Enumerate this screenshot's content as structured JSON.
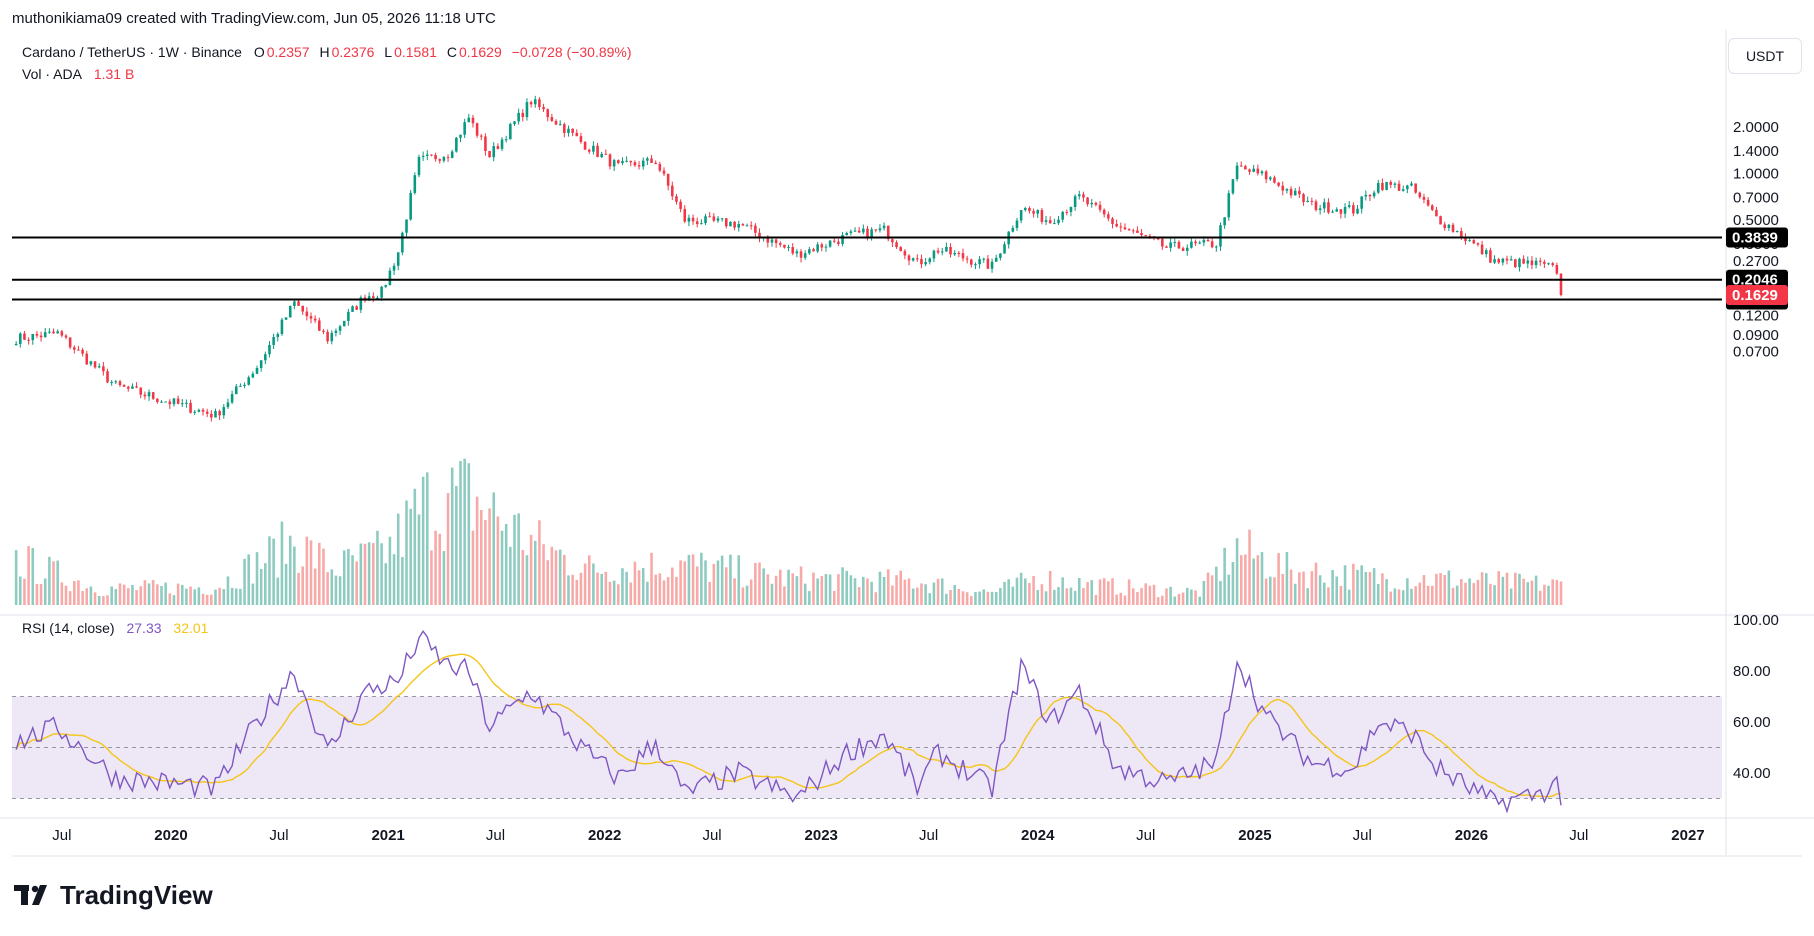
{
  "header": {
    "attribution": "muthonikiama09 created with TradingView.com, Jun 05, 2026 11:18 UTC"
  },
  "legend": {
    "symbol": "Cardano / TetherUS · 1W · Binance",
    "open_label": "O",
    "open": "0.2357",
    "high_label": "H",
    "high": "0.2376",
    "low_label": "L",
    "low": "0.1581",
    "close_label": "C",
    "close": "0.1629",
    "change": "−0.0728 (−30.89%)",
    "volume_label": "Vol · ADA",
    "volume": "1.31 B"
  },
  "rsi_legend": {
    "label": "RSI (14, close)",
    "value": "27.33",
    "ma_value": "32.01"
  },
  "currency_button": "USDT",
  "brand": "TradingView",
  "colors": {
    "up": "#089981",
    "down": "#f23645",
    "up_volume": "#8dcbc0",
    "down_volume": "#f7a9a7",
    "rsi_line": "#7e57c2",
    "rsi_ma": "#f5c518",
    "rsi_band": "#ede7f6",
    "price_badge": "#f23645",
    "level_line": "#000000"
  },
  "chart_data": [
    {
      "type": "candlestick",
      "title": "Cardano / TetherUS · 1W · Binance",
      "scale": "log",
      "y_axis_ticks": [
        "2.0000",
        "1.4000",
        "1.0000",
        "0.7000",
        "0.5000",
        "0.3500",
        "0.2700",
        "0.1200",
        "0.0900",
        "0.0700"
      ],
      "x_axis_ticks": [
        "Jul",
        "2020",
        "Jul",
        "2021",
        "Jul",
        "2022",
        "Jul",
        "2023",
        "Jul",
        "2024",
        "Jul",
        "2025",
        "Jul",
        "2026",
        "Jul",
        "2027"
      ],
      "horizontal_levels": [
        {
          "value": 0.3839,
          "label": "0.3839"
        },
        {
          "value": 0.2046,
          "label": "0.2046"
        },
        {
          "value": 0.1522,
          "label": "0.1522"
        }
      ],
      "last_price": {
        "value": 0.1629,
        "label": "0.1629"
      },
      "anchors": [
        {
          "date": "2019-04-15",
          "value": 0.085
        },
        {
          "date": "2019-06-24",
          "value": 0.092
        },
        {
          "date": "2019-09-30",
          "value": 0.042
        },
        {
          "date": "2019-12-30",
          "value": 0.033
        },
        {
          "date": "2020-03-16",
          "value": 0.027
        },
        {
          "date": "2020-05-25",
          "value": 0.056
        },
        {
          "date": "2020-07-27",
          "value": 0.145
        },
        {
          "date": "2020-09-21",
          "value": 0.085
        },
        {
          "date": "2020-11-23",
          "value": 0.16
        },
        {
          "date": "2020-12-21",
          "value": 0.17
        },
        {
          "date": "2021-01-18",
          "value": 0.31
        },
        {
          "date": "2021-02-22",
          "value": 1.2
        },
        {
          "date": "2021-04-12",
          "value": 1.35
        },
        {
          "date": "2021-05-17",
          "value": 2.3
        },
        {
          "date": "2021-06-21",
          "value": 1.3
        },
        {
          "date": "2021-08-30",
          "value": 2.95
        },
        {
          "date": "2021-11-22",
          "value": 1.6
        },
        {
          "date": "2022-01-24",
          "value": 1.1
        },
        {
          "date": "2022-03-28",
          "value": 1.2
        },
        {
          "date": "2022-05-16",
          "value": 0.5
        },
        {
          "date": "2022-08-15",
          "value": 0.47
        },
        {
          "date": "2022-11-21",
          "value": 0.3
        },
        {
          "date": "2023-02-13",
          "value": 0.39
        },
        {
          "date": "2023-04-17",
          "value": 0.43
        },
        {
          "date": "2023-06-12",
          "value": 0.26
        },
        {
          "date": "2023-07-17",
          "value": 0.32
        },
        {
          "date": "2023-10-16",
          "value": 0.25
        },
        {
          "date": "2023-12-04",
          "value": 0.6
        },
        {
          "date": "2024-01-22",
          "value": 0.49
        },
        {
          "date": "2024-03-11",
          "value": 0.7
        },
        {
          "date": "2024-05-13",
          "value": 0.46
        },
        {
          "date": "2024-08-05",
          "value": 0.33
        },
        {
          "date": "2024-10-28",
          "value": 0.35
        },
        {
          "date": "2024-12-02",
          "value": 1.1
        },
        {
          "date": "2025-01-20",
          "value": 0.95
        },
        {
          "date": "2025-04-07",
          "value": 0.62
        },
        {
          "date": "2025-06-16",
          "value": 0.58
        },
        {
          "date": "2025-07-28",
          "value": 0.85
        },
        {
          "date": "2025-09-22",
          "value": 0.8
        },
        {
          "date": "2025-11-03",
          "value": 0.52
        },
        {
          "date": "2025-12-15",
          "value": 0.4
        },
        {
          "date": "2026-02-09",
          "value": 0.27
        },
        {
          "date": "2026-04-27",
          "value": 0.255
        },
        {
          "date": "2026-05-25",
          "value": 0.2357
        },
        {
          "date": "2026-06-01",
          "value": 0.1629
        }
      ]
    },
    {
      "type": "line",
      "title": "RSI (14, close)",
      "y_axis_ticks": [
        "100.00",
        "80.00",
        "60.00",
        "40.00"
      ],
      "band": [
        30,
        70
      ],
      "midline": 50,
      "series": [
        {
          "name": "RSI",
          "current": 27.33
        },
        {
          "name": "RSI-based MA",
          "current": 32.01
        }
      ],
      "anchors": [
        {
          "date": "2019-04-15",
          "value": 52
        },
        {
          "date": "2019-06-24",
          "value": 58
        },
        {
          "date": "2019-09-30",
          "value": 38
        },
        {
          "date": "2019-12-30",
          "value": 36
        },
        {
          "date": "2020-03-16",
          "value": 34
        },
        {
          "date": "2020-05-25",
          "value": 60
        },
        {
          "date": "2020-07-27",
          "value": 80
        },
        {
          "date": "2020-09-21",
          "value": 48
        },
        {
          "date": "2020-11-23",
          "value": 72
        },
        {
          "date": "2021-01-18",
          "value": 76
        },
        {
          "date": "2021-02-22",
          "value": 93
        },
        {
          "date": "2021-04-12",
          "value": 82
        },
        {
          "date": "2021-05-17",
          "value": 80
        },
        {
          "date": "2021-06-21",
          "value": 58
        },
        {
          "date": "2021-08-30",
          "value": 72
        },
        {
          "date": "2021-11-22",
          "value": 50
        },
        {
          "date": "2022-01-24",
          "value": 38
        },
        {
          "date": "2022-03-28",
          "value": 52
        },
        {
          "date": "2022-05-16",
          "value": 32
        },
        {
          "date": "2022-08-15",
          "value": 40
        },
        {
          "date": "2022-11-21",
          "value": 30
        },
        {
          "date": "2023-02-13",
          "value": 48
        },
        {
          "date": "2023-04-17",
          "value": 55
        },
        {
          "date": "2023-06-12",
          "value": 34
        },
        {
          "date": "2023-07-17",
          "value": 48
        },
        {
          "date": "2023-10-16",
          "value": 34
        },
        {
          "date": "2023-12-04",
          "value": 82
        },
        {
          "date": "2024-01-22",
          "value": 60
        },
        {
          "date": "2024-03-11",
          "value": 72
        },
        {
          "date": "2024-05-13",
          "value": 42
        },
        {
          "date": "2024-08-05",
          "value": 36
        },
        {
          "date": "2024-10-28",
          "value": 44
        },
        {
          "date": "2024-12-02",
          "value": 85
        },
        {
          "date": "2025-01-20",
          "value": 62
        },
        {
          "date": "2025-04-07",
          "value": 44
        },
        {
          "date": "2025-06-16",
          "value": 42
        },
        {
          "date": "2025-07-28",
          "value": 60
        },
        {
          "date": "2025-09-22",
          "value": 56
        },
        {
          "date": "2025-11-03",
          "value": 42
        },
        {
          "date": "2025-12-15",
          "value": 36
        },
        {
          "date": "2026-02-09",
          "value": 28
        },
        {
          "date": "2026-04-27",
          "value": 32
        },
        {
          "date": "2026-05-25",
          "value": 36
        },
        {
          "date": "2026-06-01",
          "value": 27.33
        }
      ]
    }
  ]
}
